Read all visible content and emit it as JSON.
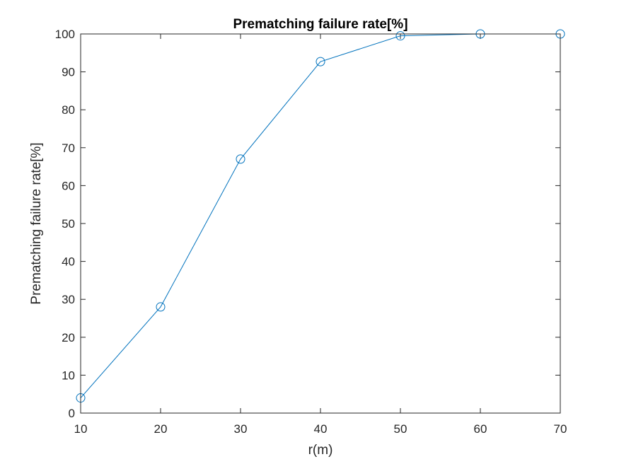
{
  "chart_data": {
    "type": "line",
    "title": "Prematching failure rate[%]",
    "xlabel": "r(m)",
    "ylabel": "Prematching failure rate[%]",
    "xlim": [
      10,
      70
    ],
    "ylim": [
      0,
      100
    ],
    "x_ticks": [
      10,
      20,
      30,
      40,
      50,
      60,
      70
    ],
    "y_ticks": [
      0,
      10,
      20,
      30,
      40,
      50,
      60,
      70,
      80,
      90,
      100
    ],
    "grid": false,
    "series": [
      {
        "x": [
          10,
          20,
          30,
          40,
          50,
          60,
          70
        ],
        "y": [
          4,
          28,
          67,
          92.7,
          99.5,
          100,
          100
        ],
        "color": "#0072BD",
        "marker": "circle"
      }
    ]
  }
}
